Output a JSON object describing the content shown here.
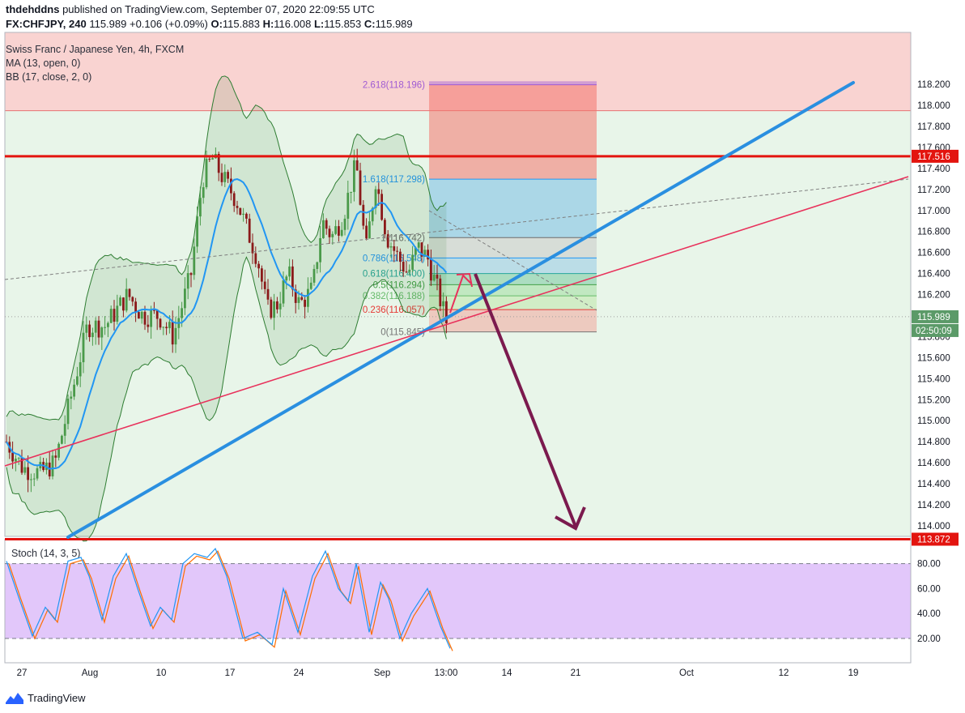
{
  "header": {
    "author": "thdehddns",
    "published": "published on TradingView.com, September 07, 2020 22:09:55 UTC",
    "symbol": "FX:CHFJPY, 240",
    "last": "115.989",
    "change": "+0.106 (+0.09%)",
    "o_label": "O:",
    "o": "115.883",
    "h_label": "H:",
    "h": "116.008",
    "l_label": "L:",
    "l": "115.853",
    "c_label": "C:",
    "c": "115.989"
  },
  "legend": {
    "title": "Swiss Franc / Japanese Yen, 4h, FXCM",
    "ma": "MA (13, open, 0)",
    "bb": "BB (17, close, 2, 0)"
  },
  "brand": {
    "name": "TradingView"
  },
  "colors": {
    "up_candle": "#4a9a4a",
    "down_candle": "#8b1a1a",
    "ma_line": "#2196f3",
    "bb_band": "#2e7d32",
    "trend_blue": "#2a8fe0",
    "trend_red": "#e8315b",
    "level_red": "#e3140f",
    "arrow": "#7b1a4e",
    "stoch_k": "#2196f3",
    "stoch_d": "#ff6d00",
    "stoch_band": "#e2c7fa"
  },
  "chart_data": [
    {
      "type": "candlestick",
      "instrument": "FX:CHFJPY",
      "timeframe": "240",
      "y_range": [
        114.04,
        118.23
      ],
      "y_ticks": [
        "118.200",
        "118.000",
        "117.800",
        "117.600",
        "117.400",
        "117.200",
        "117.000",
        "116.800",
        "116.600",
        "116.400",
        "116.200",
        "116.000",
        "115.800",
        "115.600",
        "115.400",
        "115.200",
        "115.000",
        "114.800",
        "114.600",
        "114.400",
        "114.200",
        "114.000"
      ],
      "x_ticks": [
        "27",
        "Aug",
        "10",
        "17",
        "24",
        "Sep",
        "13:00",
        "14",
        "21",
        "Oct",
        "12",
        "19"
      ],
      "x_tick_dates": [
        "2020-07-27",
        "2020-08-03",
        "2020-08-10",
        "2020-08-17",
        "2020-08-24",
        "2020-09-01",
        "2020-09-07 13:00",
        "2020-09-14",
        "2020-09-21",
        "2020-10-01",
        "2020-10-12",
        "2020-10-19"
      ],
      "horizontal_levels": [
        {
          "label": "117.516",
          "value": 117.516
        },
        {
          "label": "113.872",
          "value": 113.872
        }
      ],
      "last_price_label": "115.989",
      "countdown_label": "02:50:09",
      "fibonacci": [
        {
          "label": "2.618(118.196)",
          "ratio": 2.618,
          "value": 118.196
        },
        {
          "label": "1.618(117.298)",
          "ratio": 1.618,
          "value": 117.298
        },
        {
          "label": "1(116.742)",
          "ratio": 1,
          "value": 116.742
        },
        {
          "label": "0.786(116.548)",
          "ratio": 0.786,
          "value": 116.548
        },
        {
          "label": "0.618(116.400)",
          "ratio": 0.618,
          "value": 116.4
        },
        {
          "label": "0.5(116.294)",
          "ratio": 0.5,
          "value": 116.294
        },
        {
          "label": "0.382(116.188)",
          "ratio": 0.382,
          "value": 116.188
        },
        {
          "label": "0.236(116.057)",
          "ratio": 0.236,
          "value": 116.057
        },
        {
          "label": "0(115.845)",
          "ratio": 0,
          "value": 115.845
        }
      ],
      "resistance_zone": [
        117.95,
        118.23
      ]
    },
    {
      "type": "line",
      "title": "Stoch (14, 3, 5)",
      "y_range": [
        0,
        100
      ],
      "y_ticks": [
        "80.00",
        "60.00",
        "40.00",
        "20.00"
      ],
      "bands": [
        20,
        80
      ]
    }
  ]
}
